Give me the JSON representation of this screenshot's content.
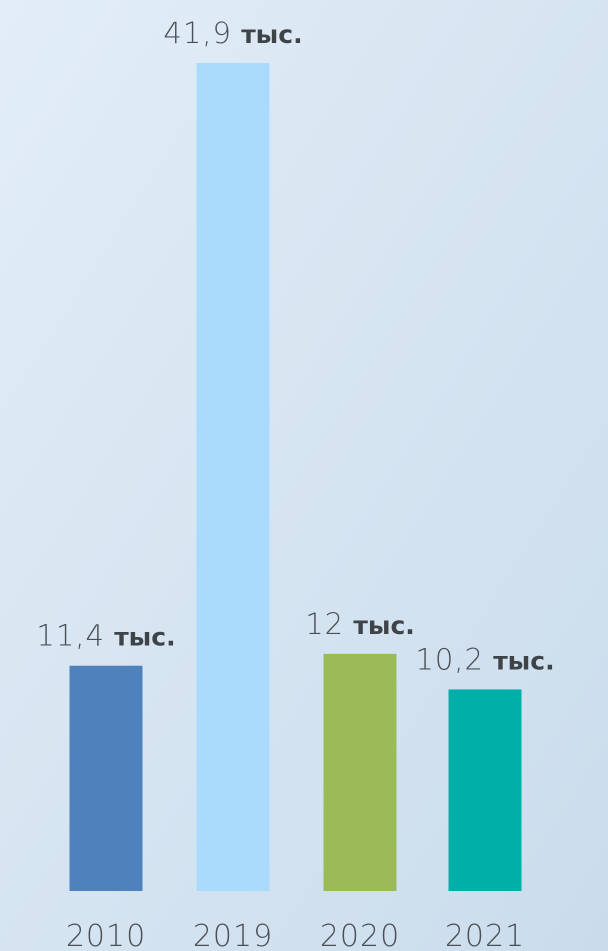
{
  "chart_data": {
    "type": "bar",
    "categories": [
      "2010",
      "2019",
      "2020",
      "2021"
    ],
    "values": [
      11.4,
      41.9,
      12,
      10.2
    ],
    "value_labels": [
      "11,4",
      "41,9",
      "12",
      "10,2"
    ],
    "unit": "тыс.",
    "colors": [
      "#4f81bd",
      "#abdbfc",
      "#9bbb59",
      "#00b0a8"
    ]
  }
}
